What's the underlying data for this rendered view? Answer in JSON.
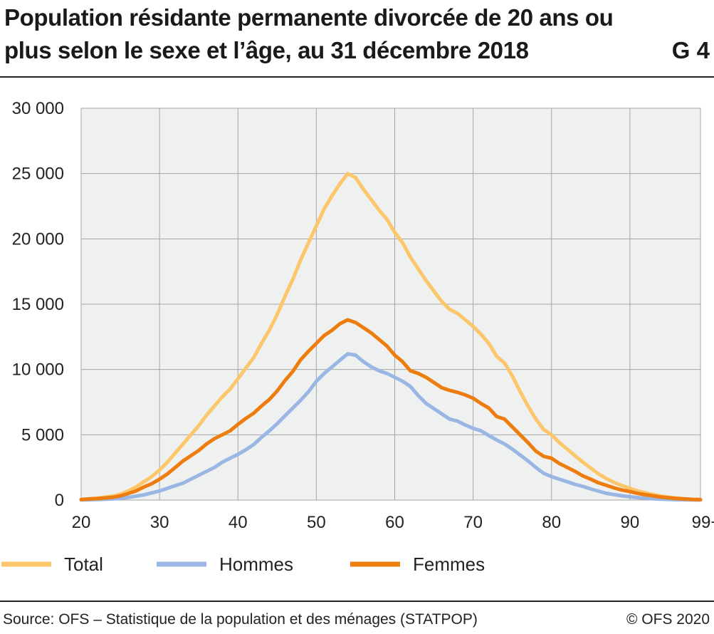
{
  "header": {
    "title": "Population résidante permanente divorcée de 20 ans ou plus selon le sexe et l’âge, au 31 décembre 2018",
    "chart_id": "G 4"
  },
  "footer": {
    "source": "Source: OFS – Statistique de la population et des ménages (STATPOP)",
    "copyright": "© OFS 2020"
  },
  "colors": {
    "total": "#fcc66b",
    "hommes": "#9ab6e2",
    "femmes": "#ee7d0f",
    "plot_bg": "#eff0f0",
    "grid": "#a6a6a6"
  },
  "chart_data": {
    "type": "line",
    "title": "Population résidante permanente divorcée de 20 ans ou plus selon le sexe et l’âge, au 31 décembre 2018",
    "xlim": [
      20,
      99
    ],
    "ylim": [
      0,
      30000
    ],
    "x_ticks": [
      20,
      30,
      40,
      50,
      60,
      70,
      80,
      90,
      99
    ],
    "x_tick_labels": [
      "20",
      "30",
      "40",
      "50",
      "60",
      "70",
      "80",
      "90",
      "99+"
    ],
    "y_ticks": [
      0,
      5000,
      10000,
      15000,
      20000,
      25000,
      30000
    ],
    "y_tick_labels": [
      "0",
      "5 000",
      "10 000",
      "15 000",
      "20 000",
      "25 000",
      "30 000"
    ],
    "grid": true,
    "legend_position": "bottom",
    "x": [
      20,
      21,
      22,
      23,
      24,
      25,
      26,
      27,
      28,
      29,
      30,
      31,
      32,
      33,
      34,
      35,
      36,
      37,
      38,
      39,
      40,
      41,
      42,
      43,
      44,
      45,
      46,
      47,
      48,
      49,
      50,
      51,
      52,
      53,
      54,
      55,
      56,
      57,
      58,
      59,
      60,
      61,
      62,
      63,
      64,
      65,
      66,
      67,
      68,
      69,
      70,
      71,
      72,
      73,
      74,
      75,
      76,
      77,
      78,
      79,
      80,
      81,
      82,
      83,
      84,
      85,
      86,
      87,
      88,
      89,
      90,
      91,
      92,
      93,
      94,
      95,
      96,
      97,
      98,
      99
    ],
    "series": [
      {
        "name": "Total",
        "values": [
          50,
          100,
          150,
          220,
          300,
          450,
          700,
          1000,
          1400,
          1800,
          2300,
          2900,
          3600,
          4300,
          5000,
          5700,
          6500,
          7200,
          7900,
          8500,
          9300,
          10100,
          10900,
          12000,
          13000,
          14200,
          15600,
          16900,
          18400,
          19700,
          21000,
          22300,
          23300,
          24200,
          25000,
          24700,
          23800,
          23000,
          22200,
          21500,
          20500,
          19700,
          18600,
          17700,
          16800,
          16000,
          15200,
          14600,
          14300,
          13800,
          13300,
          12700,
          12000,
          11000,
          10500,
          9500,
          8300,
          7200,
          6200,
          5400,
          5000,
          4400,
          3900,
          3400,
          2900,
          2450,
          2000,
          1650,
          1350,
          1100,
          900,
          700,
          550,
          420,
          300,
          220,
          150,
          100,
          60,
          40
        ]
      },
      {
        "name": "Hommes",
        "values": [
          10,
          20,
          40,
          60,
          90,
          130,
          200,
          300,
          400,
          550,
          700,
          900,
          1100,
          1300,
          1600,
          1900,
          2200,
          2500,
          2900,
          3200,
          3500,
          3850,
          4250,
          4800,
          5300,
          5850,
          6450,
          7050,
          7650,
          8300,
          9100,
          9700,
          10200,
          10700,
          11200,
          11100,
          10600,
          10200,
          9900,
          9700,
          9400,
          9100,
          8700,
          8000,
          7400,
          7000,
          6600,
          6200,
          6050,
          5750,
          5500,
          5300,
          4950,
          4600,
          4300,
          3900,
          3450,
          3000,
          2500,
          2050,
          1800,
          1600,
          1400,
          1200,
          1050,
          850,
          680,
          520,
          420,
          330,
          250,
          190,
          140,
          100,
          70,
          50,
          30,
          20,
          10,
          5
        ]
      },
      {
        "name": "Femmes",
        "values": [
          40,
          80,
          110,
          160,
          210,
          320,
          500,
          700,
          1000,
          1250,
          1600,
          2000,
          2500,
          3000,
          3400,
          3800,
          4300,
          4700,
          5000,
          5300,
          5800,
          6250,
          6650,
          7200,
          7700,
          8350,
          9150,
          9850,
          10750,
          11400,
          12000,
          12600,
          13000,
          13500,
          13800,
          13600,
          13200,
          12800,
          12300,
          11800,
          11100,
          10600,
          9900,
          9700,
          9400,
          9000,
          8600,
          8400,
          8250,
          8050,
          7800,
          7400,
          7050,
          6400,
          6200,
          5600,
          5000,
          4400,
          3750,
          3350,
          3200,
          2800,
          2500,
          2200,
          1850,
          1600,
          1320,
          1130,
          930,
          770,
          650,
          510,
          410,
          320,
          230,
          170,
          120,
          80,
          50,
          35
        ]
      }
    ]
  }
}
